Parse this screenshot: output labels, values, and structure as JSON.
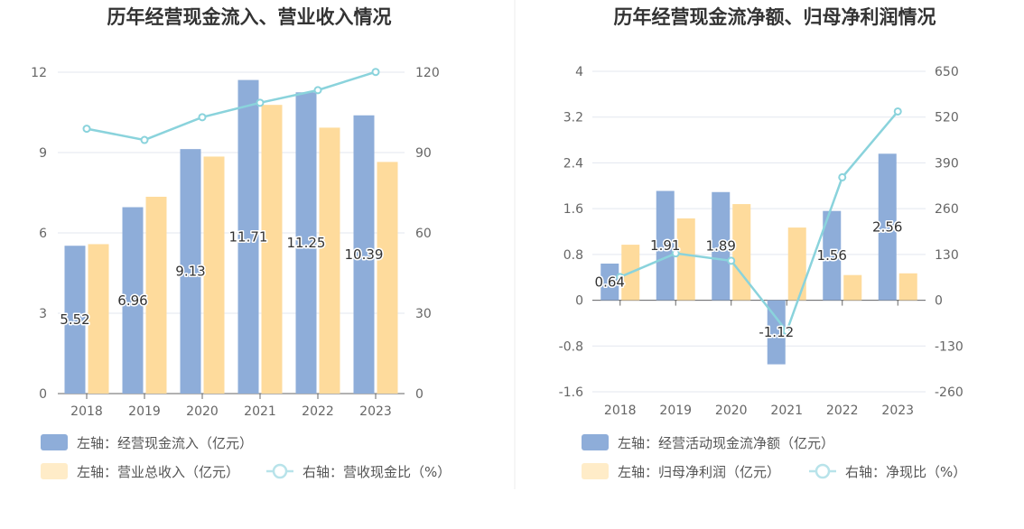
{
  "chart_data": [
    {
      "type": "bar",
      "title": "历年经营现金流入、营业收入情况",
      "categories": [
        "2018",
        "2019",
        "2020",
        "2021",
        "2022",
        "2023"
      ],
      "left_axis": {
        "ylim": [
          0,
          12
        ],
        "ticks": [
          "0",
          "3",
          "6",
          "9",
          "12"
        ]
      },
      "right_axis": {
        "ylim": [
          0,
          120
        ],
        "ticks": [
          "0",
          "30",
          "60",
          "90",
          "120"
        ]
      },
      "series": [
        {
          "name": "左轴：经营现金流入（亿元）",
          "type": "bar",
          "axis": "left",
          "color": "#8eadd9",
          "values": [
            5.52,
            6.96,
            9.13,
            11.71,
            11.25,
            10.39
          ],
          "labels": [
            "5.52",
            "6.96",
            "9.13",
            "11.71",
            "11.25",
            "10.39"
          ]
        },
        {
          "name": "左轴：营业总收入（亿元）",
          "type": "bar",
          "axis": "left",
          "color": "#fedb9c",
          "values": [
            5.58,
            7.35,
            8.85,
            10.78,
            9.93,
            8.65
          ]
        },
        {
          "name": "右轴：营收现金比（%）",
          "type": "line",
          "axis": "right",
          "color": "#8ad3dc",
          "values": [
            98.9,
            94.7,
            103.2,
            108.6,
            113.3,
            120.1
          ]
        }
      ],
      "grid": true,
      "legend_position": "bottom-left"
    },
    {
      "type": "bar",
      "title": "历年经营现金流净额、归母净利润情况",
      "categories": [
        "2018",
        "2019",
        "2020",
        "2021",
        "2022",
        "2023"
      ],
      "left_axis": {
        "ylim": [
          -1.6,
          4
        ],
        "ticks": [
          "-1.6",
          "-0.8",
          "0",
          "0.8",
          "1.6",
          "2.4",
          "3.2",
          "4"
        ]
      },
      "right_axis": {
        "ylim": [
          -260,
          650
        ],
        "ticks": [
          "-260",
          "-130",
          "0",
          "130",
          "260",
          "390",
          "520",
          "650"
        ]
      },
      "series": [
        {
          "name": "左轴：经营活动现金流净额（亿元）",
          "type": "bar",
          "axis": "left",
          "color": "#8eadd9",
          "values": [
            0.64,
            1.91,
            1.89,
            -1.12,
            1.56,
            2.56
          ],
          "labels": [
            "0.64",
            "1.91",
            "1.89",
            "-1.12",
            "1.56",
            "2.56"
          ]
        },
        {
          "name": "左轴：归母净利润（亿元）",
          "type": "bar",
          "axis": "left",
          "color": "#fedb9c",
          "values": [
            0.97,
            1.43,
            1.68,
            1.27,
            0.44,
            0.47
          ]
        },
        {
          "name": "右轴：净现比（%）",
          "type": "line",
          "axis": "right",
          "color": "#8ad3dc",
          "values": [
            66,
            133,
            112,
            -88,
            349,
            536
          ]
        }
      ],
      "grid": true,
      "legend_position": "bottom-left"
    }
  ]
}
